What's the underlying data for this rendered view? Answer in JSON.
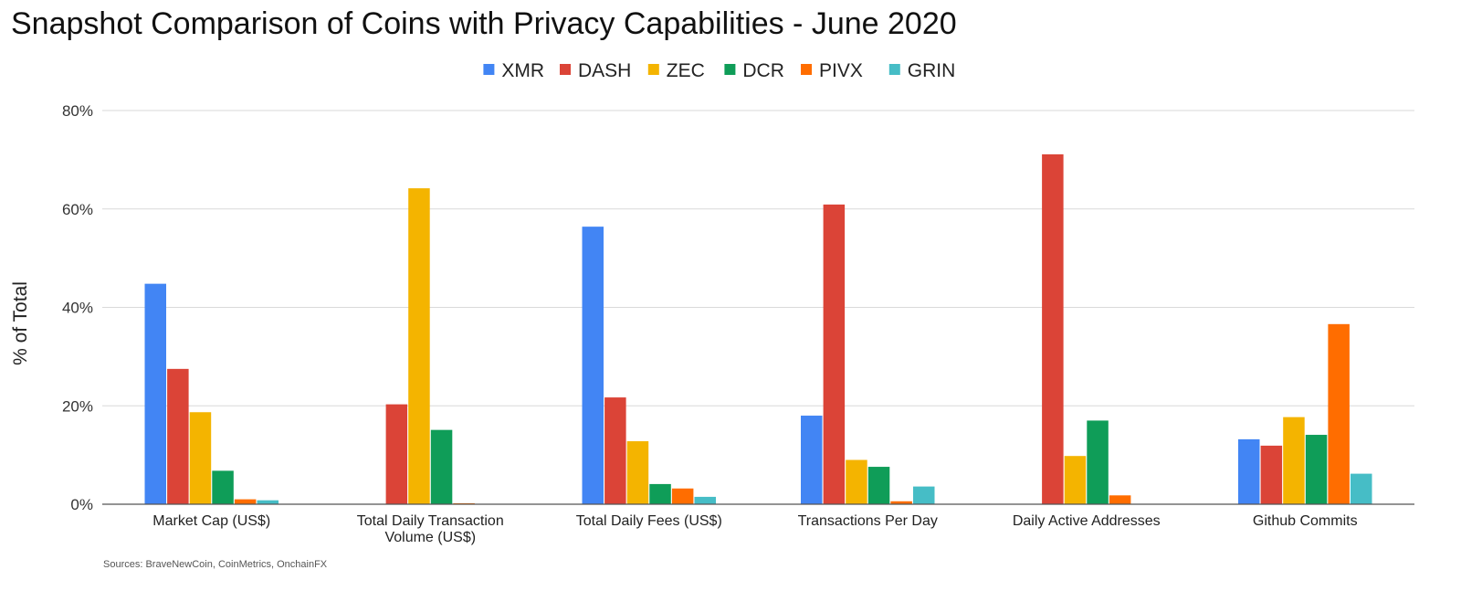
{
  "chart_data": {
    "type": "bar",
    "title": "Snapshot Comparison of Coins with Privacy Capabilities - June 2020",
    "ylabel": "% of Total",
    "xlabel": "",
    "ylim": [
      0,
      80
    ],
    "yticks": [
      "0%",
      "20%",
      "40%",
      "60%",
      "80%"
    ],
    "ytick_values": [
      0,
      20,
      40,
      60,
      80
    ],
    "grid": true,
    "legend_position": "top-center",
    "source": "Sources: BraveNewCoin, CoinMetrics, OnchainFX",
    "categories": [
      [
        "Market Cap (US$)"
      ],
      [
        "Total Daily Transaction",
        "Volume (US$)"
      ],
      [
        "Total Daily Fees (US$)"
      ],
      [
        "Transactions Per Day"
      ],
      [
        "Daily Active Addresses"
      ],
      [
        "Github Commits"
      ]
    ],
    "series": [
      {
        "name": "XMR",
        "color": "#4285f4",
        "values": [
          44.8,
          0,
          56.4,
          18.0,
          0,
          13.2
        ]
      },
      {
        "name": "DASH",
        "color": "#db4437",
        "values": [
          27.5,
          20.3,
          21.7,
          60.9,
          71.1,
          11.9
        ]
      },
      {
        "name": "ZEC",
        "color": "#f4b400",
        "values": [
          18.7,
          64.2,
          12.8,
          9.0,
          9.8,
          17.7
        ]
      },
      {
        "name": "DCR",
        "color": "#0f9d58",
        "values": [
          6.8,
          15.1,
          4.1,
          7.6,
          17.0,
          14.1
        ]
      },
      {
        "name": "PIVX",
        "color": "#ff6d00",
        "values": [
          1.0,
          0.2,
          3.2,
          0.6,
          1.8,
          36.6
        ]
      },
      {
        "name": "GRIN",
        "color": "#46bdc6",
        "values": [
          0.8,
          0,
          1.5,
          3.6,
          0,
          6.2
        ]
      }
    ]
  }
}
